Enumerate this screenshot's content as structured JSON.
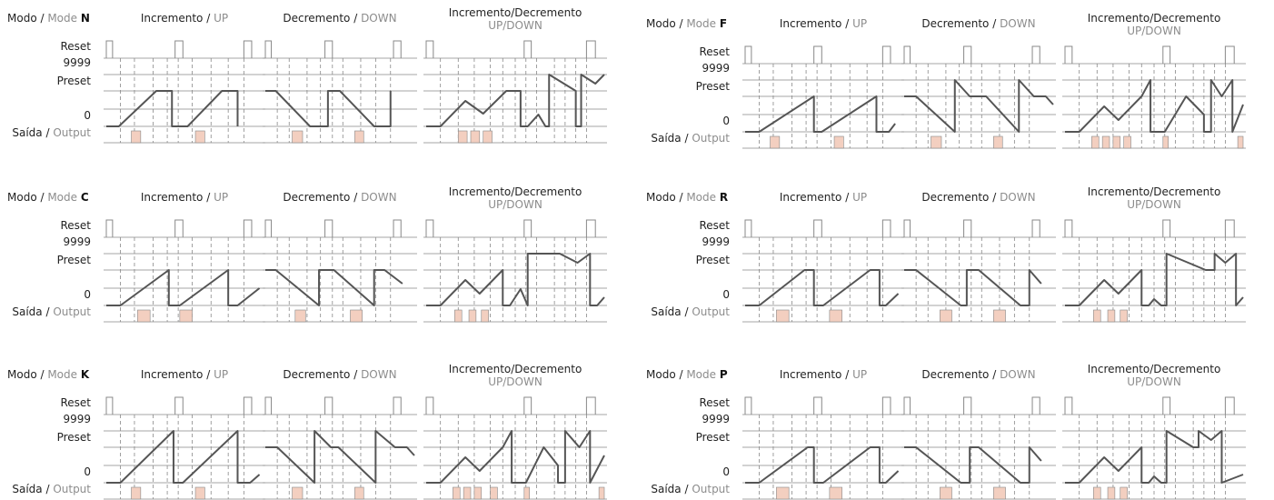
{
  "labels": {
    "mode_pt": "Modo",
    "slash": " / ",
    "mode_en": "Mode",
    "reset": "Reset",
    "max": "9999",
    "preset": "Preset",
    "zero": "0",
    "out_pt": "Saída",
    "out_en": "Output"
  },
  "titles": {
    "up_pt": "Incremento",
    "up_en": "UP",
    "down_pt": "Decremento",
    "down_en": "DOWN",
    "updown_pt": "Incremento/Decremento",
    "updown_en": "UP/DOWN"
  },
  "modes": [
    {
      "letter": "N"
    },
    {
      "letter": "F"
    },
    {
      "letter": "C"
    },
    {
      "letter": "R"
    },
    {
      "letter": "K"
    },
    {
      "letter": "P"
    }
  ],
  "colors": {
    "line": "#555555",
    "grid": "#888888",
    "output": "#f3cfc0"
  }
}
